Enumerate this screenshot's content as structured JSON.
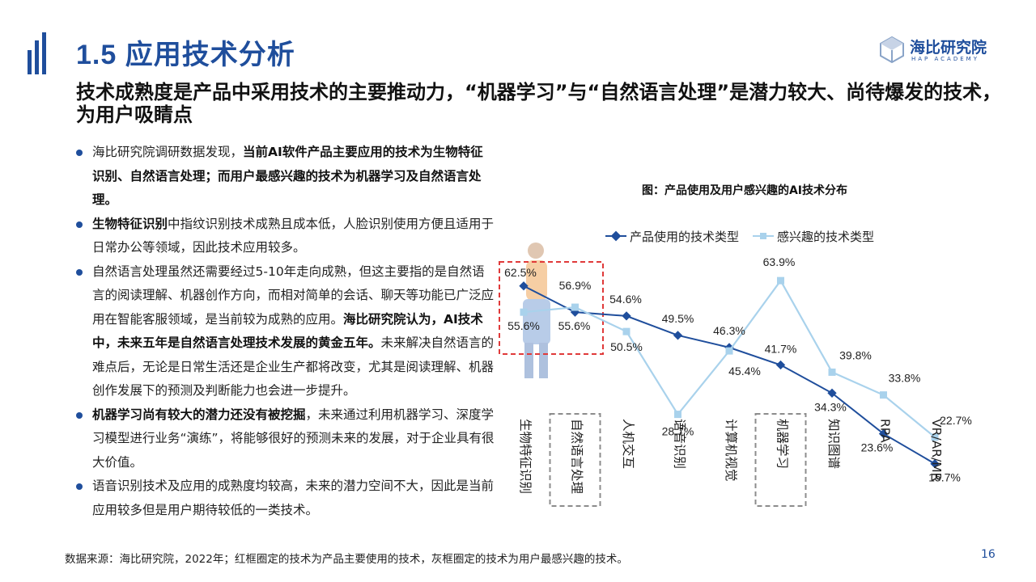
{
  "header": {
    "title": "1.5 应用技术分析",
    "logo_cn": "海比研究院",
    "logo_en": "HAP ACADEMY"
  },
  "subtitle": "技术成熟度是产品中采用技术的主要推动力，“机器学习”与“自然语言处理”是潜力较大、尚待爆发的技术，为用户吸睛点",
  "bullets": [
    {
      "pre": "海比研究院调研数据发现，",
      "bold": "当前AI软件产品主要应用的技术为生物特征识别、自然语言处理；而用户最感兴趣的技术为机器学习及自然语言处理。",
      "post": "",
      "bold2": "",
      "post2": ""
    },
    {
      "pre": "",
      "bold": "生物特征识别",
      "post": "中指纹识别技术成熟且成本低，人脸识别使用方便且适用于日常办公等领域，因此技术应用较多。",
      "bold2": "",
      "post2": ""
    },
    {
      "pre": "自然语言处理虽然还需要经过5-10年走向成熟，但这主要指的是自然语言的阅读理解、机器创作方向，而相对简单的会话、聊天等功能已广泛应用在智能客服领域，是当前较为成熟的应用。",
      "bold": "海比研究院认为，AI技术中，未来五年是自然语言处理技术发展的黄金五年。",
      "post": "未来解决自然语言的难点后，无论是日常生活还是企业生产都将改变，尤其是阅读理解、机器创作发展下的预测及判断能力也会进一步提升。",
      "bold2": "",
      "post2": ""
    },
    {
      "pre": "",
      "bold": "机器学习尚有较大的潜力还没有被挖掘",
      "post": "，未来通过利用机器学习、深度学习模型进行业务“演练”，将能够很好的预测未来的发展，对于企业具有很大价值。",
      "bold2": "",
      "post2": ""
    },
    {
      "pre": "语音识别技术及应用的成熟度均较高，未来的潜力空间不大，因此是当前应用较多但是用户期待较低的一类技术。",
      "bold": "",
      "post": "",
      "bold2": "",
      "post2": ""
    }
  ],
  "footer": "数据来源：海比研究院，2022年；红框圈定的技术为产品主要使用的技术，灰框圈定的技术为用户最感兴趣的技术。",
  "page_number": "16",
  "colors": {
    "brand": "#1f4e9c",
    "series_used": "#1f4e9c",
    "series_interest": "#a9d2ec",
    "red_box": "#e03a3a",
    "gray_box": "#8c8c8c"
  },
  "chart_data": {
    "type": "line",
    "title": "图：产品使用及用户感兴趣的AI技术分布",
    "categories": [
      "生物特征识别",
      "自然语言处理",
      "人机交互",
      "语音识别",
      "计算机视觉",
      "机器学习",
      "知识图谱",
      "RPA",
      "VR/AR/MR"
    ],
    "series": [
      {
        "name": "产品使用的技术类型",
        "values": [
          62.5,
          55.6,
          54.6,
          49.5,
          46.3,
          41.7,
          34.3,
          23.6,
          15.7
        ],
        "labels": [
          "62.5%",
          "55.6%",
          "54.6%",
          "49.5%",
          "46.3%",
          "41.7%",
          "34.3%",
          "23.6%",
          "15.7%"
        ]
      },
      {
        "name": "感兴趣的技术类型",
        "values": [
          55.6,
          56.9,
          50.5,
          28.7,
          45.4,
          63.9,
          39.8,
          33.8,
          22.7
        ],
        "labels": [
          "55.6%",
          "56.9%",
          "50.5%",
          "28.7%",
          "45.4%",
          "63.9%",
          "39.8%",
          "33.8%",
          "22.7%"
        ]
      }
    ],
    "legend_position": "top",
    "grid": false,
    "highlight_red": [
      "生物特征识别"
    ],
    "highlight_gray": [
      "自然语言处理",
      "机器学习"
    ]
  }
}
